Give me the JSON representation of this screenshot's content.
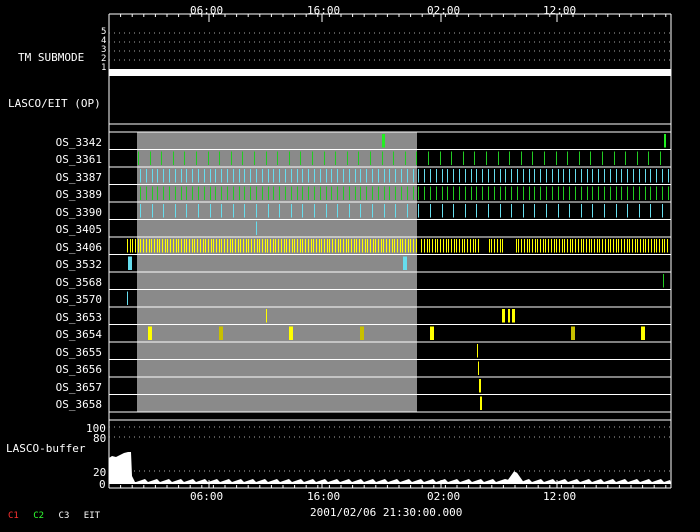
{
  "time_axis": {
    "ticks": [
      "06:00",
      "16:00",
      "02:00",
      "12:00"
    ],
    "footer": "2001/02/06 21:30:00.000"
  },
  "tm_submode": {
    "label": "TM SUBMODE",
    "levels": [
      "5",
      "4",
      "3",
      "2",
      "1"
    ],
    "current_level": 1
  },
  "lasco_eit": {
    "label": "LASCO/EIT (OP)"
  },
  "os_rows": [
    {
      "name": "OS_3342"
    },
    {
      "name": "OS_3361"
    },
    {
      "name": "OS_3387"
    },
    {
      "name": "OS_3389"
    },
    {
      "name": "OS_3390"
    },
    {
      "name": "OS_3405"
    },
    {
      "name": "OS_3406"
    },
    {
      "name": "OS_3532"
    },
    {
      "name": "OS_3568"
    },
    {
      "name": "OS_3570"
    },
    {
      "name": "OS_3653"
    },
    {
      "name": "OS_3654"
    },
    {
      "name": "OS_3655"
    },
    {
      "name": "OS_3656"
    },
    {
      "name": "OS_3657"
    },
    {
      "name": "OS_3658"
    }
  ],
  "buffer": {
    "label": "LASCO-buffer",
    "ticks": [
      "100",
      "80",
      "20",
      "0"
    ]
  },
  "legend": [
    {
      "text": "C1",
      "color": "#ff3030"
    },
    {
      "text": "C2",
      "color": "#30ff30"
    },
    {
      "text": "C3",
      "color": "#ffffff"
    },
    {
      "text": "EIT",
      "color": "#ffffff"
    }
  ],
  "colors": {
    "green": "#22cc22",
    "cyan": "#66ddee",
    "yellow": "#ffff00",
    "olive": "#c8c000",
    "gray_band": "#8a8a8a"
  }
}
